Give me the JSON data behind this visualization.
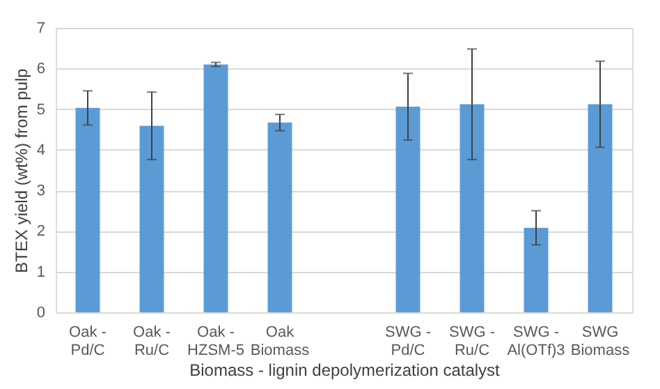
{
  "chart_data": {
    "type": "bar",
    "xlabel": "Biomass - lignin depolymerization catalyst",
    "ylabel": "BTEX yield (wt%) from pulp",
    "categories": [
      "Oak - Pd/C",
      "Oak - Ru/C",
      "Oak - HZSM-5",
      "Oak Biomass",
      null,
      "SWG - Pd/C",
      "SWG - Ru/C",
      "SWG - Al(OTf)3",
      "SWG Biomass"
    ],
    "values": [
      5.03,
      4.59,
      6.1,
      4.67,
      null,
      5.06,
      5.12,
      2.08,
      5.12
    ],
    "errors": [
      0.42,
      0.83,
      0.05,
      0.2,
      null,
      0.82,
      1.36,
      0.42,
      1.06
    ],
    "color": "#5b9bd5",
    "ylim": [
      0,
      7
    ],
    "yticks": [
      0,
      1,
      2,
      3,
      4,
      5,
      6,
      7
    ],
    "grid": "y"
  }
}
